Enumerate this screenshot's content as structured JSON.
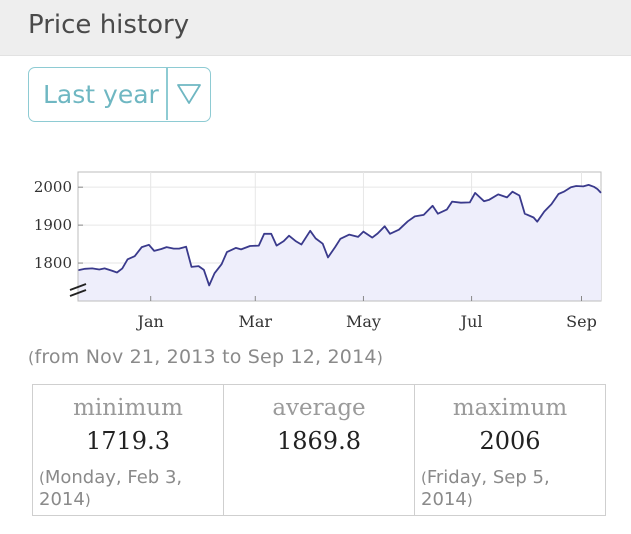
{
  "header": {
    "title": "Price history"
  },
  "period_select": {
    "value": "Last year"
  },
  "range_note": "from Nov 21, 2013 to Sep 12, 2014",
  "stats": [
    {
      "label": "minimum",
      "value": "1719.3",
      "date": "Monday, Feb 3, 2014"
    },
    {
      "label": "average",
      "value": "1869.8",
      "date": ""
    },
    {
      "label": "maximum",
      "value": "2006",
      "date": "Friday, Sep 5, 2014"
    }
  ],
  "colors": {
    "line": "#3a3a8c",
    "fill": "#eeeefb",
    "accent": "#6fb7c2"
  },
  "chart_data": {
    "type": "area",
    "title": "",
    "xlabel": "",
    "ylabel": "",
    "ylim": [
      1700,
      2040
    ],
    "y_ticks": [
      1800,
      1900,
      2000
    ],
    "y_axis_break": true,
    "x_ticks": [
      {
        "label": "Jan",
        "date": "2014-01-01"
      },
      {
        "label": "Mar",
        "date": "2014-03-01"
      },
      {
        "label": "May",
        "date": "2014-05-01"
      },
      {
        "label": "Jul",
        "date": "2014-07-01"
      },
      {
        "label": "Sep",
        "date": "2014-09-01"
      }
    ],
    "xlim": [
      "2013-11-21",
      "2014-09-12"
    ],
    "grid": true,
    "series": [
      {
        "points": [
          [
            "2013-11-21",
            1781
          ],
          [
            "2013-11-25",
            1785
          ],
          [
            "2013-11-29",
            1786
          ],
          [
            "2013-12-03",
            1783
          ],
          [
            "2013-12-06",
            1786
          ],
          [
            "2013-12-10",
            1780
          ],
          [
            "2013-12-13",
            1775
          ],
          [
            "2013-12-16",
            1786
          ],
          [
            "2013-12-19",
            1810
          ],
          [
            "2013-12-23",
            1818
          ],
          [
            "2013-12-27",
            1842
          ],
          [
            "2013-12-31",
            1848
          ],
          [
            "2014-01-03",
            1832
          ],
          [
            "2014-01-07",
            1837
          ],
          [
            "2014-01-10",
            1842
          ],
          [
            "2014-01-14",
            1838
          ],
          [
            "2014-01-17",
            1838
          ],
          [
            "2014-01-21",
            1843
          ],
          [
            "2014-01-24",
            1790
          ],
          [
            "2014-01-28",
            1792
          ],
          [
            "2014-01-31",
            1782
          ],
          [
            "2014-02-03",
            1741
          ],
          [
            "2014-02-06",
            1773
          ],
          [
            "2014-02-10",
            1797
          ],
          [
            "2014-02-13",
            1829
          ],
          [
            "2014-02-18",
            1840
          ],
          [
            "2014-02-21",
            1836
          ],
          [
            "2014-02-26",
            1845
          ],
          [
            "2014-03-03",
            1846
          ],
          [
            "2014-03-06",
            1877
          ],
          [
            "2014-03-10",
            1877
          ],
          [
            "2014-03-13",
            1846
          ],
          [
            "2014-03-17",
            1858
          ],
          [
            "2014-03-20",
            1872
          ],
          [
            "2014-03-24",
            1857
          ],
          [
            "2014-03-27",
            1849
          ],
          [
            "2014-04-01",
            1885
          ],
          [
            "2014-04-04",
            1865
          ],
          [
            "2014-04-08",
            1851
          ],
          [
            "2014-04-11",
            1815
          ],
          [
            "2014-04-15",
            1842
          ],
          [
            "2014-04-18",
            1864
          ],
          [
            "2014-04-23",
            1875
          ],
          [
            "2014-04-28",
            1869
          ],
          [
            "2014-05-01",
            1883
          ],
          [
            "2014-05-06",
            1867
          ],
          [
            "2014-05-09",
            1878
          ],
          [
            "2014-05-13",
            1897
          ],
          [
            "2014-05-16",
            1877
          ],
          [
            "2014-05-21",
            1888
          ],
          [
            "2014-05-26",
            1910
          ],
          [
            "2014-05-30",
            1923
          ],
          [
            "2014-06-04",
            1927
          ],
          [
            "2014-06-09",
            1951
          ],
          [
            "2014-06-12",
            1930
          ],
          [
            "2014-06-17",
            1941
          ],
          [
            "2014-06-20",
            1962
          ],
          [
            "2014-06-25",
            1959
          ],
          [
            "2014-06-30",
            1960
          ],
          [
            "2014-07-03",
            1985
          ],
          [
            "2014-07-08",
            1963
          ],
          [
            "2014-07-11",
            1967
          ],
          [
            "2014-07-16",
            1981
          ],
          [
            "2014-07-21",
            1973
          ],
          [
            "2014-07-24",
            1988
          ],
          [
            "2014-07-28",
            1978
          ],
          [
            "2014-07-31",
            1930
          ],
          [
            "2014-08-05",
            1920
          ],
          [
            "2014-08-07",
            1909
          ],
          [
            "2014-08-11",
            1936
          ],
          [
            "2014-08-15",
            1955
          ],
          [
            "2014-08-19",
            1982
          ],
          [
            "2014-08-22",
            1988
          ],
          [
            "2014-08-26",
            2000
          ],
          [
            "2014-08-29",
            2003
          ],
          [
            "2014-09-02",
            2002
          ],
          [
            "2014-09-05",
            2006
          ],
          [
            "2014-09-08",
            2001
          ],
          [
            "2014-09-10",
            1995
          ],
          [
            "2014-09-12",
            1985
          ]
        ]
      }
    ]
  }
}
